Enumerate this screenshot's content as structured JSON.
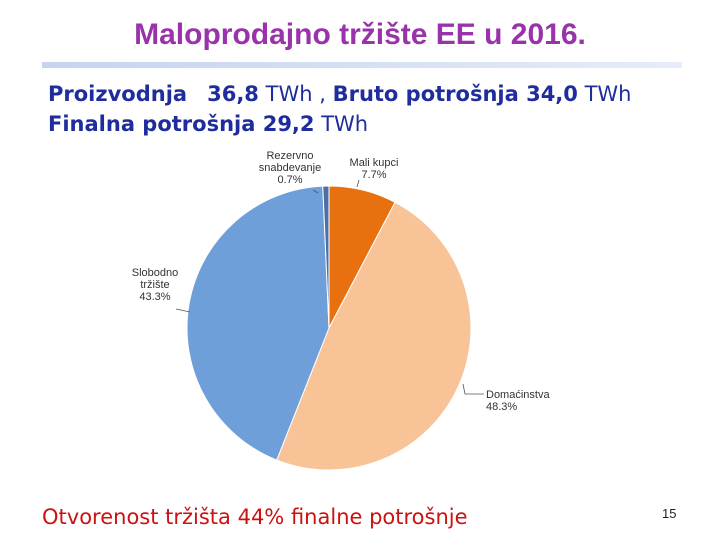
{
  "slide": {
    "title": "Maloprodajno tržište EE u 2016.",
    "line1": {
      "a_label": "Proizvodnja",
      "a_value": "36,8",
      "a_unit": "TWh ,",
      "b_label": "Bruto potrošnja 34,0",
      "b_unit": "TWh"
    },
    "line2": {
      "label": "Finalna potrošnja 29,2",
      "unit": "TWh"
    },
    "footer": {
      "bold": "Otvorenost tržišta 44%",
      "rest": "finalne potrošnje"
    },
    "page_number": "15"
  },
  "chart_data": {
    "type": "pie",
    "slices": [
      {
        "label_lines": [
          "Mali kupci"
        ],
        "value": 7.7,
        "display": "7.7%",
        "color": "#e8700e"
      },
      {
        "label_lines": [
          "Domaćinstva"
        ],
        "value": 48.3,
        "display": "48.3%",
        "color": "#f8c497"
      },
      {
        "label_lines": [
          "Slobodno",
          "tržište"
        ],
        "value": 43.3,
        "display": "43.3%",
        "color": "#6f9fd8"
      },
      {
        "label_lines": [
          "Rezervno",
          "snabdevanje"
        ],
        "value": 0.7,
        "display": "0.7%",
        "color": "#4d6fa3"
      }
    ]
  }
}
